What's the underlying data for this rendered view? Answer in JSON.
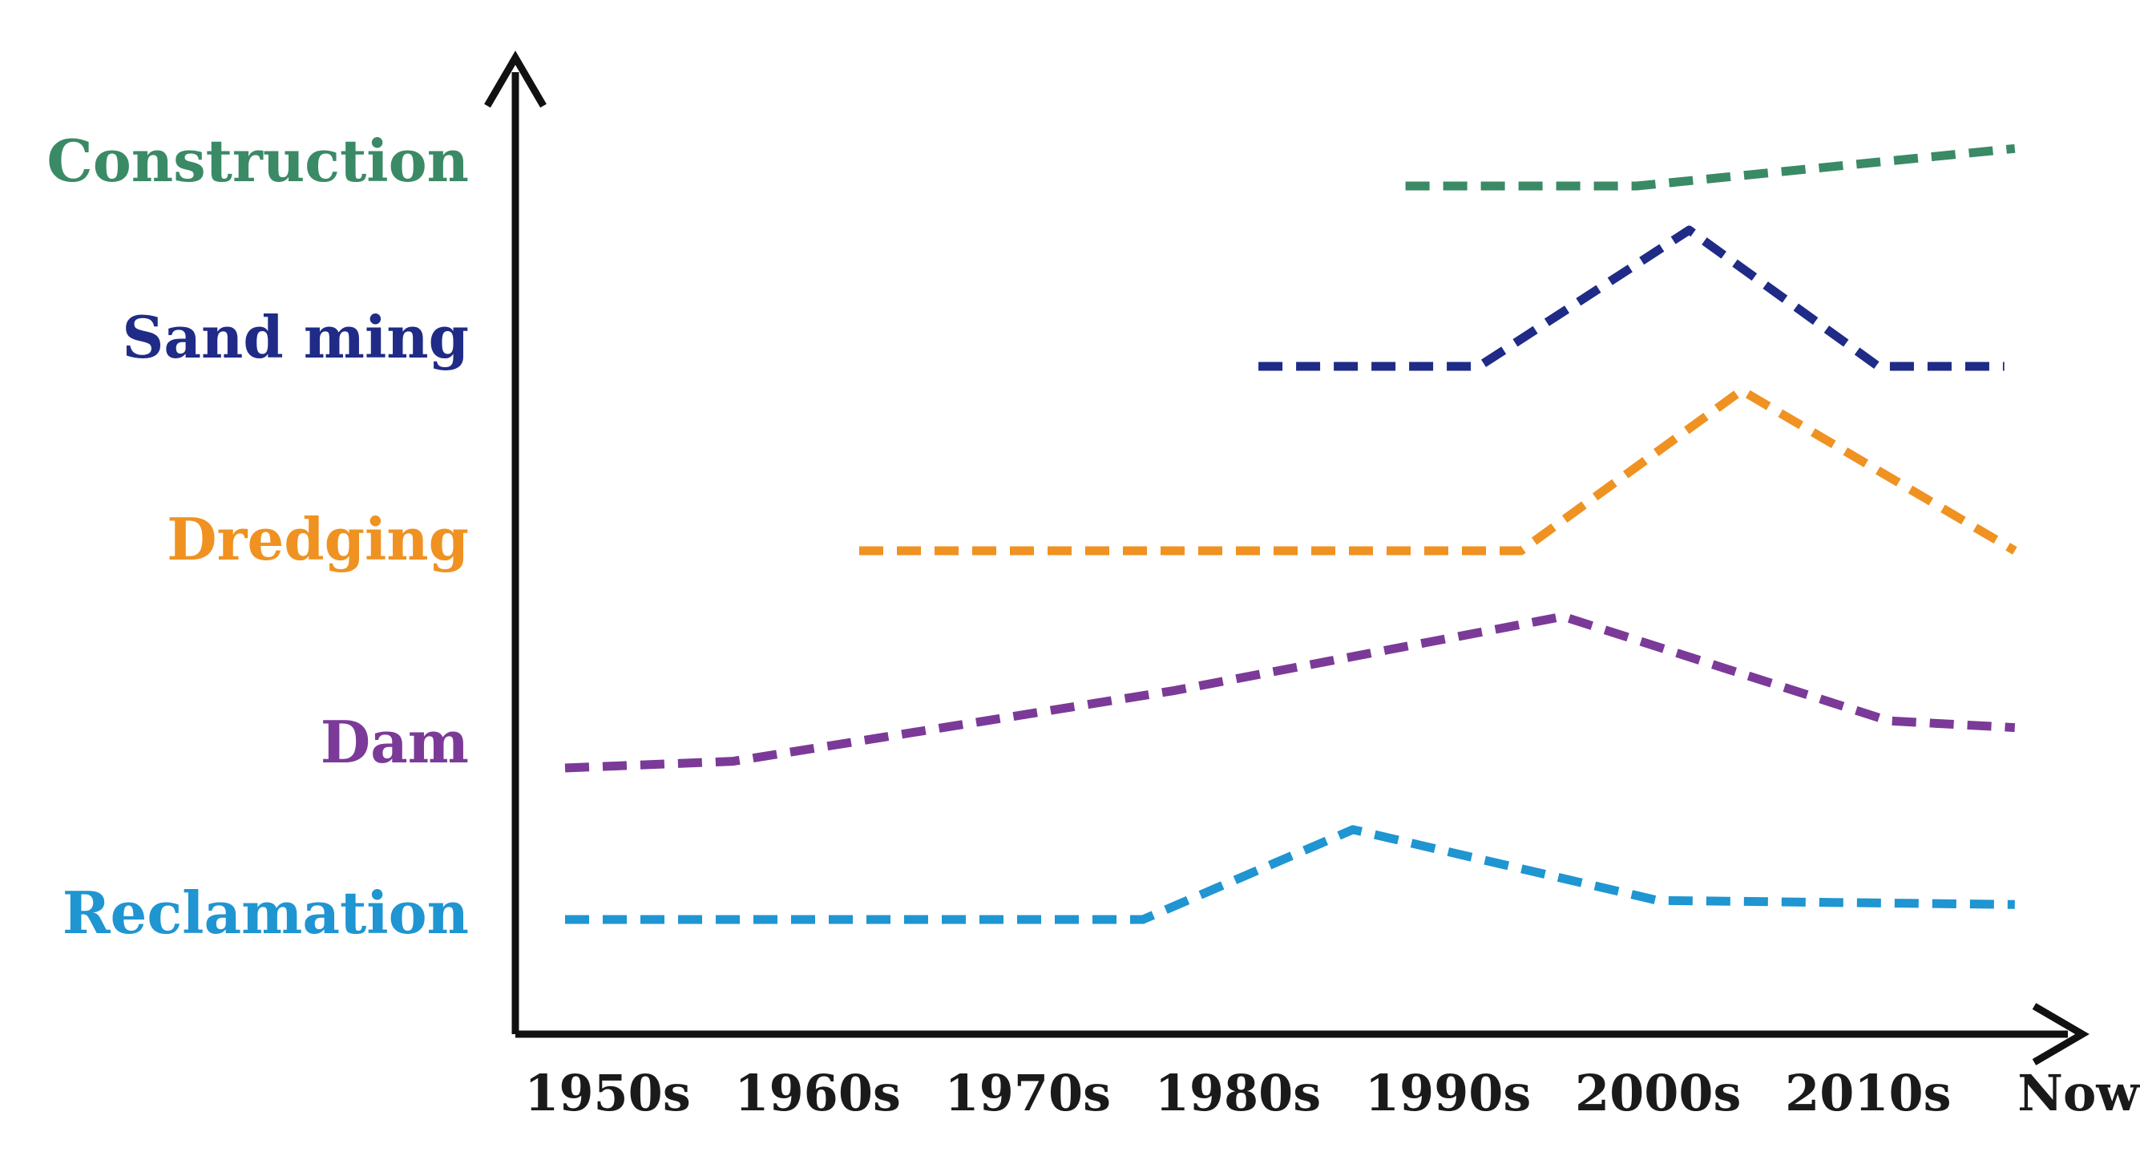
{
  "chart_data": {
    "type": "line",
    "categories": [
      "1950s",
      "1960s",
      "1970s",
      "1980s",
      "1990s",
      "2000s",
      "2010s",
      "Now"
    ],
    "xlim": [
      0,
      7
    ],
    "grid": false,
    "legend": "none",
    "series": [
      {
        "name": "Construction",
        "color": "#3a8a66",
        "x": [
          4.0,
          5.1,
          6.9
        ],
        "y": [
          0.0,
          0.0,
          0.55
        ]
      },
      {
        "name": "Sand ming",
        "color": "#1f2b87",
        "x": [
          3.3,
          4.35,
          5.35,
          6.25,
          6.85
        ],
        "y": [
          0.0,
          0.0,
          1.0,
          0.0,
          0.0
        ]
      },
      {
        "name": "Dredging",
        "color": "#ef9221",
        "x": [
          1.4,
          4.55,
          5.6,
          6.9
        ],
        "y": [
          0.0,
          0.0,
          1.0,
          0.0
        ]
      },
      {
        "name": "Dam",
        "color": "#7b3a98",
        "x": [
          0.0,
          0.8,
          2.9,
          4.75,
          6.3,
          6.9
        ],
        "y": [
          0.0,
          0.04,
          0.46,
          0.9,
          0.28,
          0.24
        ]
      },
      {
        "name": "Reclamation",
        "color": "#1f95d2",
        "x": [
          0.0,
          2.75,
          3.75,
          5.2,
          6.9
        ],
        "y": [
          0.0,
          0.0,
          0.66,
          0.14,
          0.11
        ]
      }
    ]
  }
}
